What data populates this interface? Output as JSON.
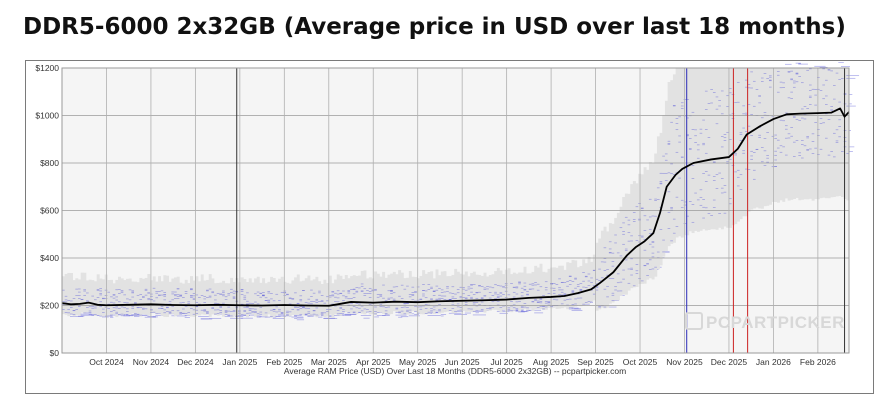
{
  "page": {
    "title": "DDR5-6000 2x32GB (Average price in USD over last 18 months)"
  },
  "chart_data": {
    "type": "line",
    "title": "DDR5-6000 2x32GB (Average price in USD over last 18 months)",
    "xlabel": "Average RAM Price (USD) Over Last 18 Months (DDR5-6000 2x32GB) -- pcpartpicker.com",
    "ylabel": "",
    "ylim": [
      0,
      1200
    ],
    "xlim": [
      0,
      17.7
    ],
    "y_ticks": [
      0,
      200,
      400,
      600,
      800,
      1000,
      1200
    ],
    "y_tick_labels": [
      "$0",
      "$200",
      "$400",
      "$600",
      "$800",
      "$1000",
      "$1200"
    ],
    "x_ticks": [
      1.0,
      2.0,
      3.0,
      4.0,
      5.0,
      6.0,
      7.0,
      8.0,
      9.0,
      10.0,
      11.0,
      12.0,
      13.0,
      14.0,
      15.0,
      16.0,
      17.0
    ],
    "x_tick_labels": [
      "Oct 2024",
      "Nov 2024",
      "Dec 2024",
      "Jan 2025",
      "Feb 2025",
      "Mar 2025",
      "Apr 2025",
      "May 2025",
      "Jun 2025",
      "Jul 2025",
      "Aug 2025",
      "Sep 2025",
      "Oct 2025",
      "Nov 2025",
      "Dec 2025",
      "Jan 2026",
      "Feb 2026"
    ],
    "grid": true,
    "watermark": "PCPARTPICKER",
    "series": [
      {
        "name": "Average price",
        "color": "#000000",
        "x": [
          0.0,
          0.2,
          0.4,
          0.6,
          0.8,
          1.0,
          1.5,
          2.0,
          2.5,
          3.0,
          3.5,
          4.0,
          4.5,
          5.0,
          5.5,
          6.0,
          6.2,
          6.5,
          7.0,
          7.5,
          8.0,
          8.5,
          9.0,
          9.5,
          10.0,
          10.5,
          11.0,
          11.3,
          11.6,
          11.9,
          12.1,
          12.4,
          12.7,
          12.9,
          13.1,
          13.3,
          13.45,
          13.6,
          13.8,
          13.95,
          14.2,
          14.6,
          15.0,
          15.2,
          15.4,
          15.7,
          16.0,
          16.3,
          16.6,
          17.0,
          17.3,
          17.5,
          17.6,
          17.7
        ],
        "values": [
          210,
          205,
          207,
          212,
          203,
          201,
          203,
          205,
          202,
          201,
          203,
          201,
          200,
          202,
          200,
          199,
          205,
          215,
          212,
          216,
          214,
          218,
          220,
          222,
          225,
          232,
          236,
          240,
          252,
          268,
          295,
          340,
          410,
          445,
          470,
          505,
          590,
          700,
          750,
          775,
          800,
          815,
          825,
          860,
          920,
          955,
          985,
          1005,
          1008,
          1010,
          1012,
          1030,
          995,
          1015
        ]
      }
    ],
    "marker_lines": [
      {
        "name": "blue-marker",
        "x": 14.05,
        "color": "#2b2bb8"
      },
      {
        "name": "red-marker-1",
        "x": 15.1,
        "color": "#cc2222"
      },
      {
        "name": "red-marker-2",
        "x": 15.42,
        "color": "#cc2222"
      },
      {
        "name": "dark-marker-start",
        "x": 3.93,
        "color": "#333333"
      },
      {
        "name": "dark-marker-end",
        "x": 17.6,
        "color": "#333333"
      }
    ]
  }
}
